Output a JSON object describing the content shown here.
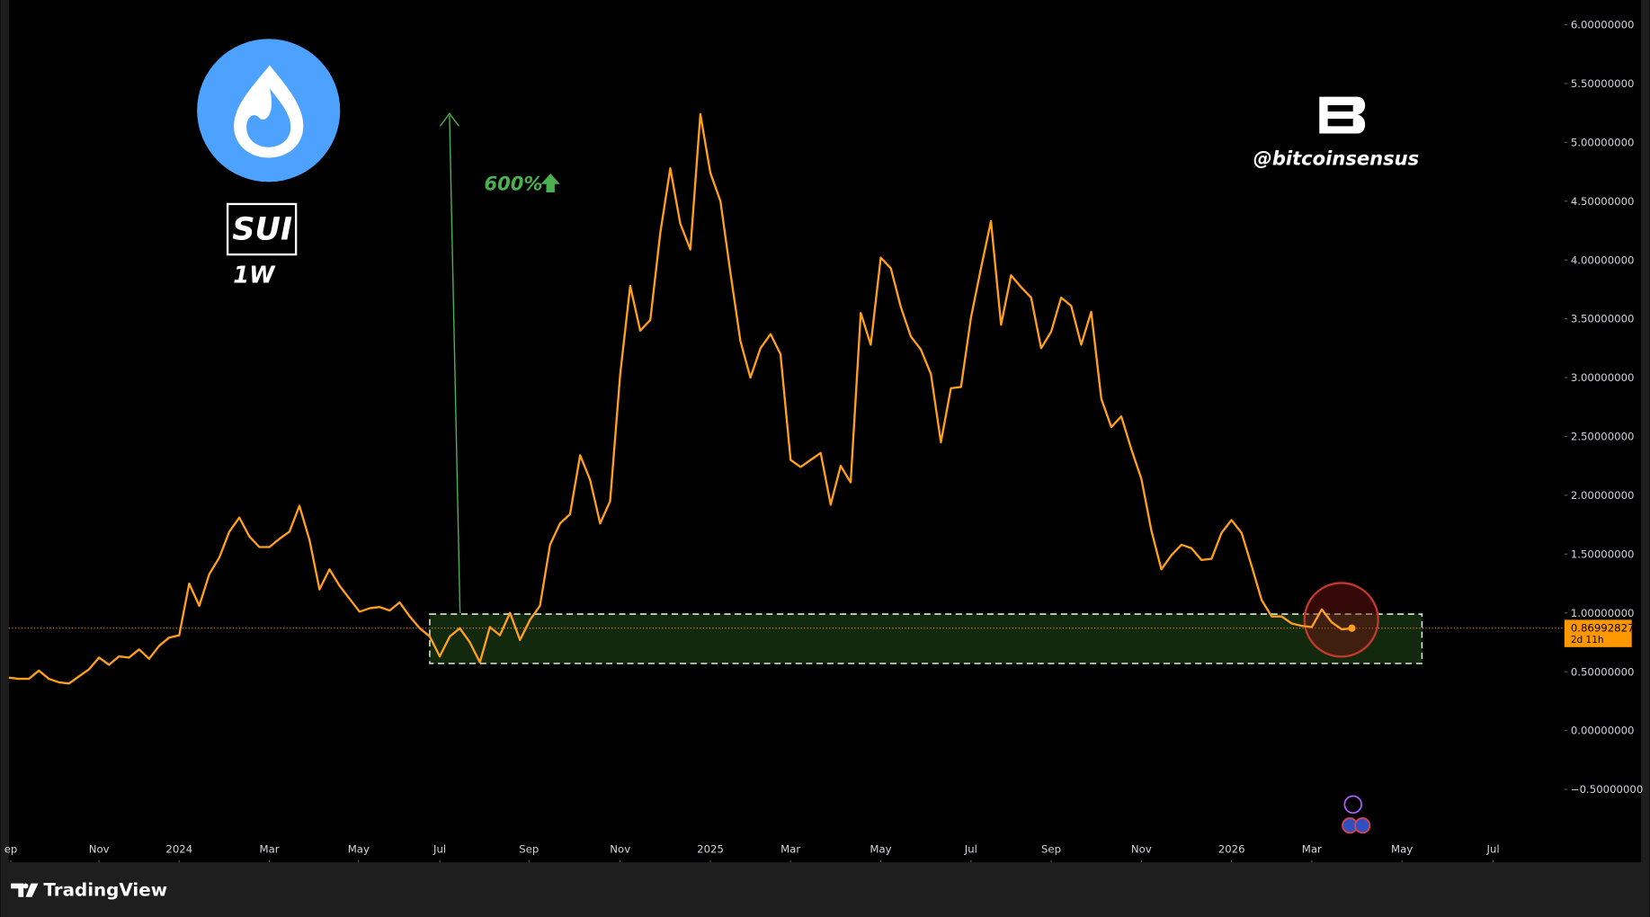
{
  "chart_data": {
    "type": "line",
    "title": "SUI",
    "subtitle": "1W",
    "watermark": "@bitcoinsensus",
    "brand": "TradingView",
    "annotation": "600%",
    "price_label": "0.86992827",
    "countdown": "2d 11h",
    "color": "#ff9f1c",
    "x": [
      0,
      1,
      2,
      3,
      4,
      5,
      6,
      7,
      8,
      9,
      10,
      11,
      12,
      13,
      14,
      15,
      16,
      17,
      18,
      19,
      20,
      21,
      22,
      23,
      24,
      25,
      26,
      27,
      28,
      29,
      30,
      31,
      32,
      33,
      34,
      35,
      36,
      37,
      38,
      39,
      40,
      41,
      42,
      43,
      44,
      45,
      46,
      47,
      48,
      49,
      50,
      51,
      52,
      53,
      54,
      55,
      56,
      57,
      58,
      59,
      60,
      61,
      62,
      63,
      64,
      65,
      66,
      67,
      68,
      69,
      70,
      71,
      72,
      73,
      74,
      75,
      76,
      77,
      78,
      79,
      80,
      81,
      82,
      83,
      84,
      85,
      86,
      87,
      88,
      89,
      90,
      91,
      92,
      93,
      94,
      95,
      96,
      97,
      98,
      99,
      100,
      101,
      102,
      103,
      104,
      105,
      106,
      107,
      108,
      109,
      110,
      111,
      112,
      113,
      114,
      115,
      116,
      117,
      118,
      119,
      120,
      121,
      122,
      123,
      124,
      125,
      126,
      127,
      128,
      129,
      130,
      131,
      132,
      133,
      134
    ],
    "values": [
      0.45,
      0.44,
      0.44,
      0.51,
      0.44,
      0.41,
      0.4,
      0.46,
      0.52,
      0.62,
      0.56,
      0.63,
      0.62,
      0.69,
      0.61,
      0.72,
      0.79,
      0.81,
      1.25,
      1.06,
      1.33,
      1.47,
      1.69,
      1.81,
      1.65,
      1.56,
      1.56,
      1.63,
      1.69,
      1.91,
      1.62,
      1.2,
      1.37,
      1.23,
      1.12,
      1.01,
      1.04,
      1.05,
      1.02,
      1.09,
      0.97,
      0.87,
      0.8,
      0.63,
      0.8,
      0.87,
      0.75,
      0.58,
      0.88,
      0.81,
      1.0,
      0.77,
      0.94,
      1.06,
      1.58,
      1.76,
      1.84,
      2.34,
      2.13,
      1.76,
      1.95,
      3.03,
      3.78,
      3.4,
      3.49,
      4.23,
      4.78,
      4.31,
      4.09,
      5.24,
      4.74,
      4.5,
      3.89,
      3.31,
      3.0,
      3.25,
      3.37,
      3.2,
      2.3,
      2.24,
      2.3,
      2.36,
      1.92,
      2.25,
      2.11,
      3.55,
      3.28,
      4.02,
      3.93,
      3.6,
      3.35,
      3.24,
      3.03,
      2.45,
      2.91,
      2.92,
      3.51,
      3.93,
      4.33,
      3.45,
      3.87,
      3.77,
      3.68,
      3.25,
      3.39,
      3.68,
      3.61,
      3.28,
      3.56,
      2.82,
      2.58,
      2.67,
      2.39,
      2.14,
      1.7,
      1.37,
      1.49,
      1.58,
      1.55,
      1.45,
      1.46,
      1.68,
      1.79,
      1.68,
      1.4,
      1.11,
      0.97,
      0.97,
      0.91,
      0.89,
      0.88,
      1.03,
      0.92,
      0.86,
      0.87
    ],
    "xlim": [
      0,
      155
    ],
    "xticks": [
      {
        "value": 0.2,
        "label": "ep"
      },
      {
        "value": 9,
        "label": "Nov"
      },
      {
        "value": 17,
        "label": "2024"
      },
      {
        "value": 26,
        "label": "Mar"
      },
      {
        "value": 34.9,
        "label": "May"
      },
      {
        "value": 43,
        "label": "Jul"
      },
      {
        "value": 51.9,
        "label": "Sep"
      },
      {
        "value": 61,
        "label": "Nov"
      },
      {
        "value": 70,
        "label": "2025"
      },
      {
        "value": 78,
        "label": "Mar"
      },
      {
        "value": 87,
        "label": "May"
      },
      {
        "value": 96,
        "label": "Jul"
      },
      {
        "value": 104,
        "label": "Sep"
      },
      {
        "value": 113,
        "label": "Nov"
      },
      {
        "value": 122,
        "label": "2026"
      },
      {
        "value": 130,
        "label": "Mar"
      },
      {
        "value": 139,
        "label": "May"
      },
      {
        "value": 148.1,
        "label": "Jul"
      }
    ],
    "ylim": [
      -1.12,
      6.21
    ],
    "yticks": [
      {
        "value": -0.5,
        "label": "−0.50000000"
      },
      {
        "value": 0,
        "label": "0.00000000"
      },
      {
        "value": 0.5,
        "label": "0.50000000"
      },
      {
        "value": 1,
        "label": "1.00000000"
      },
      {
        "value": 1.5,
        "label": "1.50000000"
      },
      {
        "value": 2,
        "label": "2.00000000"
      },
      {
        "value": 2.5,
        "label": "2.50000000"
      },
      {
        "value": 3,
        "label": "3.00000000"
      },
      {
        "value": 3.5,
        "label": "3.50000000"
      },
      {
        "value": 4,
        "label": "4.00000000"
      },
      {
        "value": 4.5,
        "label": "4.50000000"
      },
      {
        "value": 5,
        "label": "5.00000000"
      },
      {
        "value": 5.5,
        "label": "5.50000000"
      },
      {
        "value": 6,
        "label": "6.00000000"
      }
    ],
    "zone": {
      "x": [
        42,
        141
      ],
      "y": [
        0.57,
        0.99
      ]
    }
  }
}
